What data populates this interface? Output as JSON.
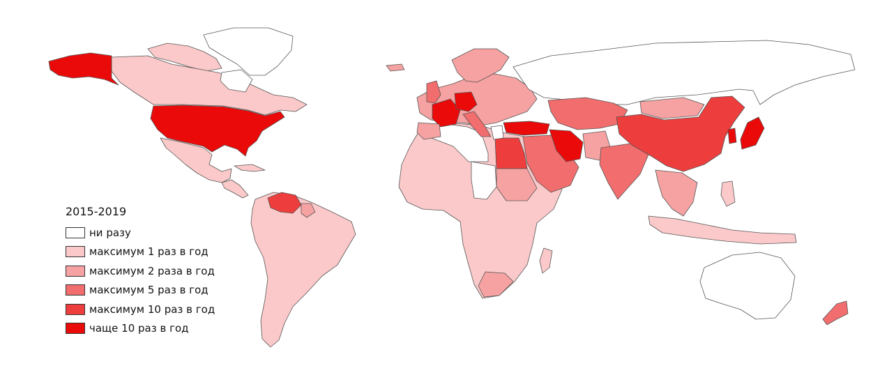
{
  "legend": {
    "title": "2015-2019",
    "items": [
      {
        "label": "ни разу",
        "color": "#ffffff"
      },
      {
        "label": "максимум 1 раз в год",
        "color": "#fbc9c9"
      },
      {
        "label": "максимум 2 раза в год",
        "color": "#f6a2a2"
      },
      {
        "label": "максимум 5 раз в год",
        "color": "#f26d6d"
      },
      {
        "label": "максимум 10 раз в год",
        "color": "#ee3d3d"
      },
      {
        "label": "чаще 10 раз в год",
        "color": "#ea0a0a"
      }
    ]
  }
}
